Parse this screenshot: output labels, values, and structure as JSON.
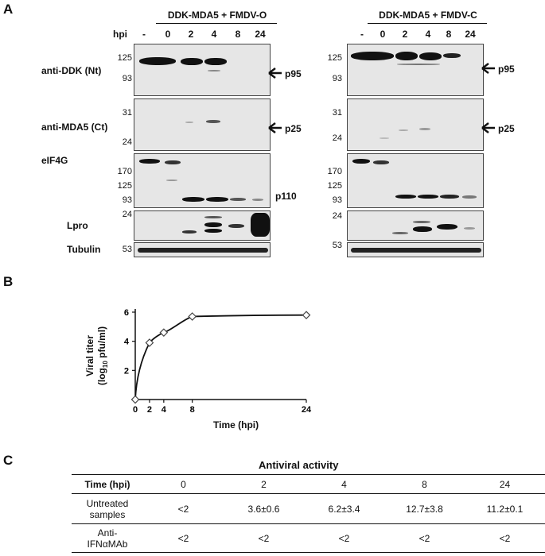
{
  "panelA": {
    "letter": "A",
    "hpi_label": "hpi",
    "left": {
      "title": "DDK-MDA5  + FMDV-O",
      "lanes": [
        "-",
        "0",
        "2",
        "4",
        "8",
        "24"
      ]
    },
    "right": {
      "title": "DDK-MDA5  + FMDV-C",
      "lanes": [
        "-",
        "0",
        "2",
        "4",
        "8",
        "24"
      ]
    },
    "rows": {
      "ddk": {
        "label": "anti-DDK (Nt)",
        "mw": [
          "125",
          "93"
        ],
        "arrow": "p95"
      },
      "mda5": {
        "label": "anti-MDA5 (Ct)",
        "mw": [
          "31",
          "24"
        ],
        "arrow": "p25"
      },
      "eif4g": {
        "label": "eIF4G",
        "mw": [
          "170",
          "125",
          "93"
        ],
        "band_label": "p110"
      },
      "lpro": {
        "label": "Lpro",
        "mw": [
          "24"
        ]
      },
      "tubulin": {
        "label": "Tubulin",
        "mw": [
          "53"
        ]
      }
    }
  },
  "panelB": {
    "letter": "B",
    "chart_data": {
      "type": "line",
      "x": [
        0,
        2,
        4,
        8,
        24
      ],
      "y": [
        0,
        3.9,
        4.6,
        5.7,
        5.8
      ],
      "xlabel": "Time (hpi)",
      "ylabel_line1": "Viral titer",
      "ylabel_line2": "(log",
      "ylabel_sub": "10",
      "ylabel_line2_end": " pfu/ml)",
      "xticks": [
        "0",
        "2",
        "4",
        "8",
        "24"
      ],
      "yticks": [
        "2",
        "4",
        "6"
      ],
      "xlim": [
        0,
        24
      ],
      "ylim": [
        0,
        6
      ],
      "marker": "diamond"
    }
  },
  "panelC": {
    "letter": "C",
    "title": "Antiviral activity",
    "header": [
      "Time (hpi)",
      "0",
      "2",
      "4",
      "8",
      "24"
    ],
    "rows": [
      {
        "label1": "Untreated",
        "label2": "samples",
        "values": [
          "<2",
          "3.6±0.6",
          "6.2±3.4",
          "12.7±3.8",
          "11.2±0.1"
        ]
      },
      {
        "label1": "Anti-",
        "label2": "IFNαMAb",
        "values": [
          "<2",
          "<2",
          "<2",
          "<2",
          "<2"
        ]
      }
    ]
  }
}
